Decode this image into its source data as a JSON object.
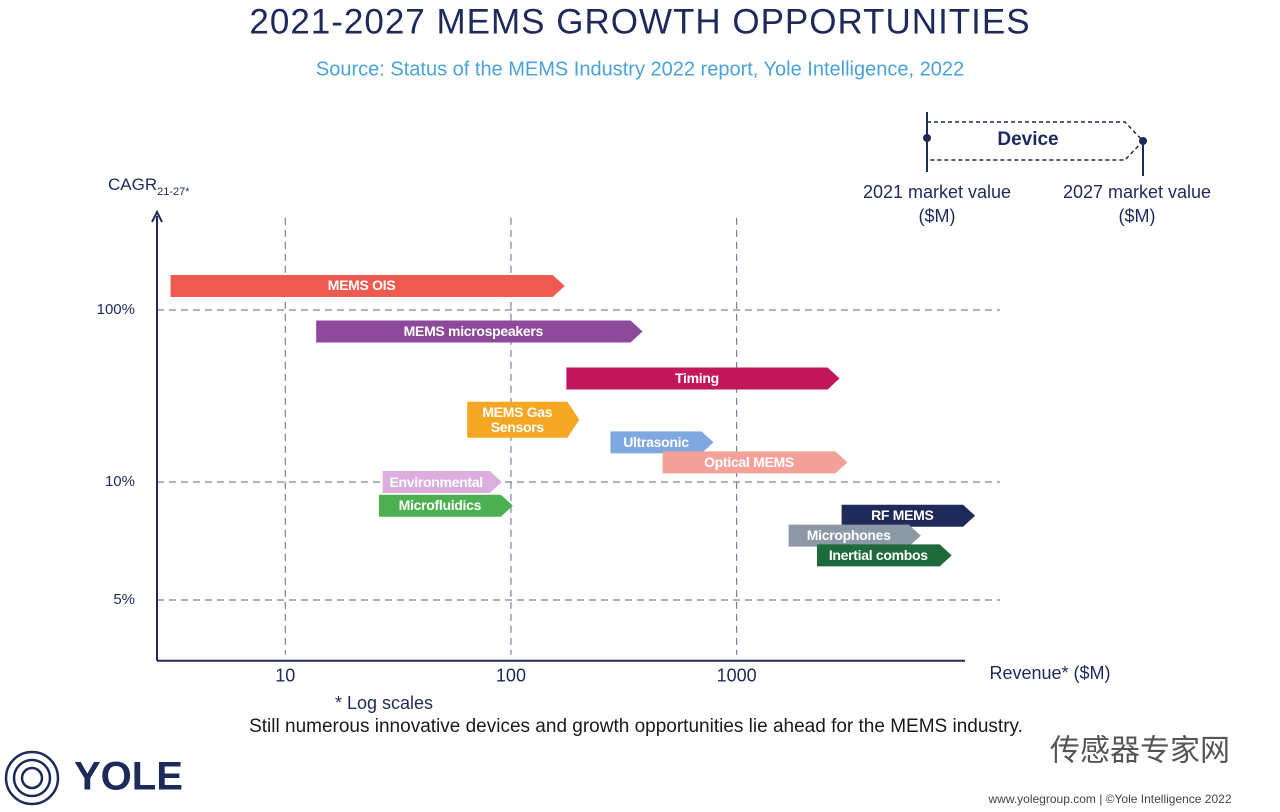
{
  "chart_data": {
    "type": "range",
    "title": "2021-2027 MEMS GROWTH OPPORTUNITIES",
    "subtitle": "Source: Status of the MEMS Industry 2022 report, Yole Intelligence, 2022",
    "y_label": "CAGR",
    "y_label_sub": "21-27*",
    "x_label": "Revenue* ($M)",
    "footnote": "* Log scales",
    "caption": "Still numerous innovative devices and growth opportunities lie ahead for the MEMS industry.",
    "x_log": true,
    "y_log": true,
    "grid": true,
    "xlim": [
      2.7,
      14700
    ],
    "xticks": [
      10,
      100,
      1000
    ],
    "ylim": [
      3.5,
      300
    ],
    "yticks": [
      {
        "value": 5,
        "label": "5%"
      },
      {
        "value": 10,
        "label": "10%"
      },
      {
        "value": 100,
        "label": "100%"
      }
    ],
    "legend": {
      "name": "Device",
      "start_label": "2021 market value ($M)",
      "end_label": "2027 market value ($M)"
    },
    "series": [
      {
        "name": "MEMS OIS",
        "color": "#ef5a50",
        "start": 3.1,
        "end": 173,
        "value": 138
      },
      {
        "name": "MEMS microspeakers",
        "color": "#8e4a9a",
        "start": 13.7,
        "end": 383,
        "value": 75
      },
      {
        "name": "Timing",
        "color": "#c2185b",
        "start": 176,
        "end": 2860,
        "value": 40
      },
      {
        "name": "MEMS Gas Sensors",
        "color": "#f5a623",
        "start": 64,
        "end": 201,
        "value": 23
      },
      {
        "name": "Ultrasonic",
        "color": "#7fa7e0",
        "start": 276,
        "end": 790,
        "value": 17
      },
      {
        "name": "Optical MEMS",
        "color": "#f4a19a",
        "start": 470,
        "end": 3100,
        "value": 13
      },
      {
        "name": "Environmental",
        "color": "#dcaee0",
        "start": 27,
        "end": 91,
        "value": 10
      },
      {
        "name": "Microfluidics",
        "color": "#4caf50",
        "start": 26,
        "end": 102,
        "value": 8.7
      },
      {
        "name": "RF MEMS",
        "color": "#1e2a5a",
        "start": 2920,
        "end": 11400,
        "value": 8.2
      },
      {
        "name": "Microphones",
        "color": "#8c98a6",
        "start": 1700,
        "end": 6550,
        "value": 7.3
      },
      {
        "name": "Inertial combos",
        "color": "#1e6a3a",
        "start": 2270,
        "end": 8980,
        "value": 6.5
      }
    ]
  },
  "branding": {
    "logo": "YOLE",
    "watermark": "传感器专家网",
    "footer": "www.yolegroup.com | ©Yole Intelligence 2022"
  }
}
